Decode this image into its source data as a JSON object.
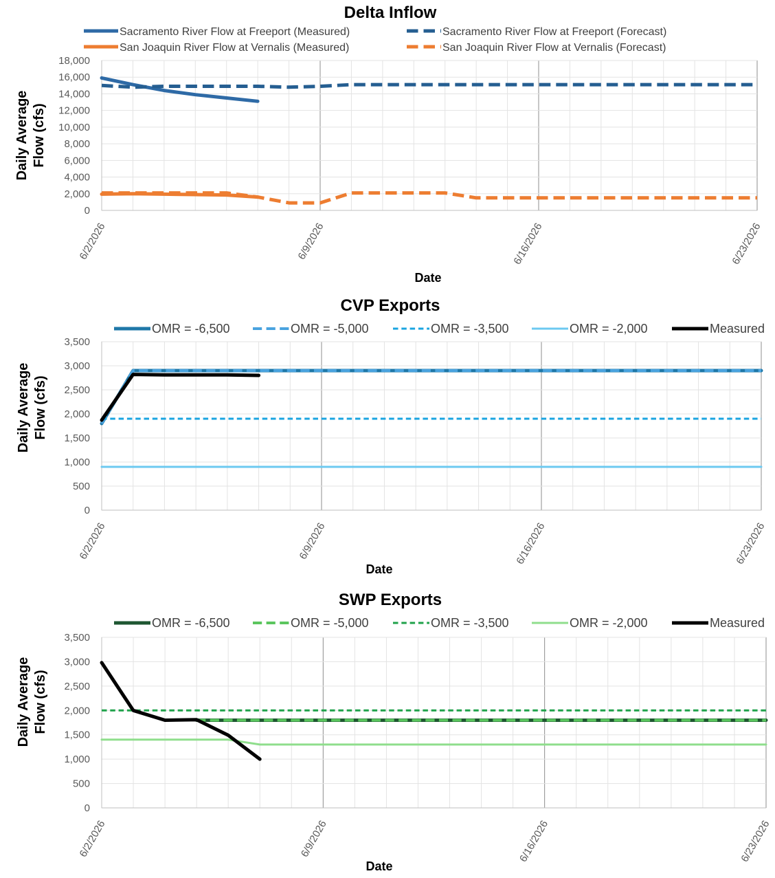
{
  "chart_data": [
    {
      "type": "line",
      "title": "Delta Inflow",
      "xlabel": "Date",
      "ylabel": "Daily Average Flow (cfs)",
      "ylim": [
        0,
        18000
      ],
      "yticks": [
        0,
        2000,
        4000,
        6000,
        8000,
        10000,
        12000,
        14000,
        16000,
        18000
      ],
      "ytick_labels": [
        "0",
        "2,000",
        "4,000",
        "6,000",
        "8,000",
        "10,000",
        "12,000",
        "14,000",
        "16,000",
        "18,000"
      ],
      "xlim": [
        "6/2/2026",
        "6/23/2026"
      ],
      "xtick_labels": [
        "6/2/2026",
        "6/9/2026",
        "6/16/2026",
        "6/23/2026"
      ],
      "grid": true,
      "legend": "top",
      "series": [
        {
          "name": "Sacramento River Flow at Freeport (Measured)",
          "color": "#2E6AA6",
          "dash": "solid",
          "x": [
            "6/2/2026",
            "6/3/2026",
            "6/4/2026",
            "6/5/2026",
            "6/6/2026",
            "6/7/2026"
          ],
          "y": [
            15900,
            15100,
            14400,
            13900,
            13500,
            13100
          ]
        },
        {
          "name": "Sacramento River Flow at Freeport (Forecast)",
          "color": "#255E91",
          "dash": "dash",
          "x": [
            "6/2/2026",
            "6/3/2026",
            "6/4/2026",
            "6/5/2026",
            "6/6/2026",
            "6/7/2026",
            "6/8/2026",
            "6/9/2026",
            "6/10/2026",
            "6/11/2026",
            "6/12/2026",
            "6/13/2026",
            "6/14/2026",
            "6/15/2026",
            "6/16/2026",
            "6/17/2026",
            "6/18/2026",
            "6/19/2026",
            "6/20/2026",
            "6/21/2026",
            "6/22/2026",
            "6/23/2026"
          ],
          "y": [
            15000,
            14800,
            14900,
            14900,
            14900,
            14900,
            14800,
            14900,
            15100,
            15100,
            15100,
            15100,
            15100,
            15100,
            15100,
            15100,
            15100,
            15100,
            15100,
            15100,
            15100,
            15100
          ]
        },
        {
          "name": "San Joaquin River Flow at Vernalis (Measured)",
          "color": "#ED7D31",
          "dash": "solid",
          "x": [
            "6/2/2026",
            "6/3/2026",
            "6/4/2026",
            "6/5/2026",
            "6/6/2026",
            "6/7/2026"
          ],
          "y": [
            1950,
            2000,
            1950,
            1900,
            1850,
            1600
          ]
        },
        {
          "name": "San Joaquin River Flow at Vernalis (Forecast)",
          "color": "#ED7D31",
          "dash": "dash",
          "x": [
            "6/2/2026",
            "6/3/2026",
            "6/4/2026",
            "6/5/2026",
            "6/6/2026",
            "6/7/2026",
            "6/8/2026",
            "6/9/2026",
            "6/10/2026",
            "6/11/2026",
            "6/12/2026",
            "6/13/2026",
            "6/14/2026",
            "6/15/2026",
            "6/16/2026",
            "6/17/2026",
            "6/18/2026",
            "6/19/2026",
            "6/20/2026",
            "6/21/2026",
            "6/22/2026",
            "6/23/2026"
          ],
          "y": [
            2100,
            2100,
            2100,
            2100,
            2100,
            1600,
            900,
            900,
            2100,
            2100,
            2100,
            2100,
            1500,
            1500,
            1500,
            1500,
            1500,
            1500,
            1500,
            1500,
            1500,
            1500
          ]
        }
      ]
    },
    {
      "type": "line",
      "title": "CVP Exports",
      "xlabel": "Date",
      "ylabel": "Daily Average Flow (cfs)",
      "ylim": [
        0,
        3500
      ],
      "yticks": [
        0,
        500,
        1000,
        1500,
        2000,
        2500,
        3000,
        3500
      ],
      "ytick_labels": [
        "0",
        "500",
        "1,000",
        "1,500",
        "2,000",
        "2,500",
        "3,000",
        "3,500"
      ],
      "xlim": [
        "6/2/2026",
        "6/23/2026"
      ],
      "xtick_labels": [
        "6/2/2026",
        "6/9/2026",
        "6/16/2026",
        "6/23/2026"
      ],
      "grid": true,
      "legend": "top",
      "series": [
        {
          "name": "OMR = -6,500",
          "color": "#1F78A8",
          "dash": "solid",
          "x": [
            "6/2/2026",
            "6/3/2026",
            "6/23/2026"
          ],
          "y": [
            1800,
            2900,
            2900
          ]
        },
        {
          "name": "OMR = -5,000",
          "color": "#4AA3DF",
          "dash": "dash",
          "x": [
            "6/2/2026",
            "6/3/2026",
            "6/23/2026"
          ],
          "y": [
            1800,
            2900,
            2900
          ]
        },
        {
          "name": "OMR = -3,500",
          "color": "#1AA4E0",
          "dash": "shortdash",
          "x": [
            "6/2/2026",
            "6/23/2026"
          ],
          "y": [
            1900,
            1900
          ]
        },
        {
          "name": "OMR = -2,000",
          "color": "#6CC9F0",
          "dash": "solid",
          "x": [
            "6/2/2026",
            "6/23/2026"
          ],
          "y": [
            900,
            900
          ]
        },
        {
          "name": "Measured",
          "color": "#000000",
          "dash": "solid",
          "x": [
            "6/2/2026",
            "6/3/2026",
            "6/4/2026",
            "6/5/2026",
            "6/6/2026",
            "6/7/2026"
          ],
          "y": [
            1870,
            2820,
            2810,
            2810,
            2810,
            2800
          ]
        }
      ]
    },
    {
      "type": "line",
      "title": "SWP Exports",
      "xlabel": "Date",
      "ylabel": "Daily Average Flow (cfs)",
      "ylim": [
        0,
        3500
      ],
      "yticks": [
        0,
        500,
        1000,
        1500,
        2000,
        2500,
        3000,
        3500
      ],
      "ytick_labels": [
        "0",
        "500",
        "1,000",
        "1,500",
        "2,000",
        "2,500",
        "3,000",
        "3,500"
      ],
      "xlim": [
        "6/2/2026",
        "6/23/2026"
      ],
      "xtick_labels": [
        "6/2/2026",
        "6/9/2026",
        "6/16/2026",
        "6/23/2026"
      ],
      "grid": true,
      "legend": "top",
      "series": [
        {
          "name": "OMR = -6,500",
          "color": "#1E5631",
          "dash": "solid",
          "x": [
            "6/5/2026",
            "6/23/2026"
          ],
          "y": [
            1800,
            1800
          ]
        },
        {
          "name": "OMR = -5,000",
          "color": "#5BC65E",
          "dash": "dash",
          "x": [
            "6/5/2026",
            "6/23/2026"
          ],
          "y": [
            1800,
            1800
          ]
        },
        {
          "name": "OMR = -3,500",
          "color": "#1FA24A",
          "dash": "shortdash",
          "x": [
            "6/2/2026",
            "6/23/2026"
          ],
          "y": [
            2000,
            2000
          ]
        },
        {
          "name": "OMR = -2,000",
          "color": "#8FDE8C",
          "dash": "solid",
          "x": [
            "6/2/2026",
            "6/6/2026",
            "6/7/2026",
            "6/23/2026"
          ],
          "y": [
            1400,
            1400,
            1300,
            1300
          ]
        },
        {
          "name": "Measured",
          "color": "#000000",
          "dash": "solid",
          "x": [
            "6/2/2026",
            "6/3/2026",
            "6/4/2026",
            "6/5/2026",
            "6/6/2026",
            "6/7/2026"
          ],
          "y": [
            2980,
            2000,
            1800,
            1810,
            1490,
            1000
          ]
        }
      ]
    }
  ]
}
